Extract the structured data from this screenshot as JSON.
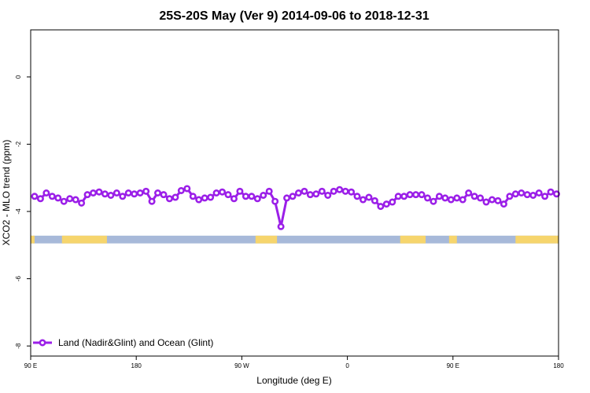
{
  "chart_data": {
    "type": "line",
    "title": "25S-20S May (Ver 9)   2014-09-06 to 2018-12-31",
    "xlabel": "Longitude (deg E)",
    "ylabel": "XCO2 - MLO trend (ppm)",
    "xlim": [
      -90,
      180
    ],
    "ylim": [
      -8.3,
      1.4
    ],
    "x_ticks": [
      -90,
      -36,
      18,
      72,
      126,
      180
    ],
    "x_tick_labels": [
      "90 E",
      "180",
      "90 W",
      "0",
      "90 E",
      "180"
    ],
    "y_ticks": [
      0,
      -2,
      -4,
      -6,
      -8
    ],
    "y_tick_labels": [
      "0",
      "-2",
      "-4",
      "-6",
      "-8"
    ],
    "grid": false,
    "legend_position": "bottom-left",
    "colors": {
      "series": "#9b1fe8",
      "ocean": "#a7b9d9",
      "land": "#f6d56d"
    },
    "series": [
      {
        "name": "Land (Nadir&Glint) and Ocean (Glint)",
        "x": [
          -88,
          -85,
          -82,
          -79,
          -76,
          -73,
          -70,
          -67,
          -64,
          -61,
          -58,
          -55,
          -52,
          -49,
          -46,
          -43,
          -40,
          -37,
          -34,
          -31,
          -28,
          -25,
          -22,
          -19,
          -16,
          -13,
          -10,
          -7,
          -4,
          -1,
          2,
          5,
          8,
          11,
          14,
          17,
          20,
          23,
          26,
          29,
          32,
          35,
          38,
          41,
          44,
          47,
          50,
          53,
          56,
          59,
          62,
          65,
          68,
          71,
          74,
          77,
          80,
          83,
          86,
          89,
          92,
          95,
          98,
          101,
          104,
          107,
          110,
          113,
          116,
          119,
          122,
          125,
          128,
          131,
          134,
          137,
          140,
          143,
          146,
          149,
          152,
          155,
          158,
          161,
          164,
          167,
          170,
          173,
          176,
          179
        ],
        "y": [
          -3.55,
          -3.62,
          -3.45,
          -3.55,
          -3.6,
          -3.7,
          -3.62,
          -3.65,
          -3.75,
          -3.5,
          -3.45,
          -3.42,
          -3.48,
          -3.52,
          -3.45,
          -3.55,
          -3.45,
          -3.48,
          -3.45,
          -3.4,
          -3.7,
          -3.45,
          -3.5,
          -3.62,
          -3.58,
          -3.38,
          -3.32,
          -3.55,
          -3.65,
          -3.6,
          -3.58,
          -3.45,
          -3.42,
          -3.5,
          -3.62,
          -3.4,
          -3.55,
          -3.55,
          -3.62,
          -3.52,
          -3.4,
          -3.7,
          -4.45,
          -3.6,
          -3.55,
          -3.45,
          -3.4,
          -3.5,
          -3.48,
          -3.4,
          -3.52,
          -3.4,
          -3.35,
          -3.4,
          -3.42,
          -3.55,
          -3.65,
          -3.58,
          -3.68,
          -3.85,
          -3.78,
          -3.72,
          -3.55,
          -3.55,
          -3.5,
          -3.5,
          -3.5,
          -3.6,
          -3.7,
          -3.55,
          -3.6,
          -3.65,
          -3.6,
          -3.65,
          -3.45,
          -3.55,
          -3.6,
          -3.72,
          -3.65,
          -3.68,
          -3.78,
          -3.55,
          -3.48,
          -3.45,
          -3.5,
          -3.52,
          -3.45,
          -3.55,
          -3.42,
          -3.48
        ]
      }
    ],
    "land_ocean_strip": {
      "y_range": [
        -4.95,
        -4.72
      ],
      "land_lon_ranges": [
        [
          -74,
          -51
        ],
        [
          25,
          36
        ],
        [
          99,
          112
        ],
        [
          124,
          128
        ],
        [
          158,
          180
        ],
        [
          -90,
          -88
        ]
      ]
    }
  }
}
